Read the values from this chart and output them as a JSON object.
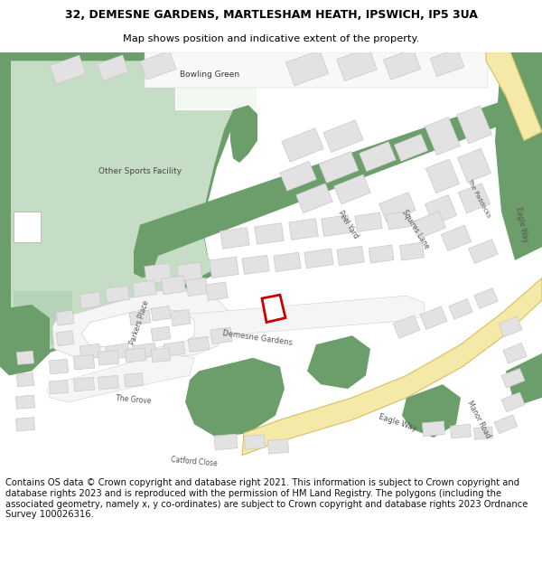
{
  "title_line1": "32, DEMESNE GARDENS, MARTLESHAM HEATH, IPSWICH, IP5 3UA",
  "title_line2": "Map shows position and indicative extent of the property.",
  "footer_text": "Contains OS data © Crown copyright and database right 2021. This information is subject to Crown copyright and database rights 2023 and is reproduced with the permission of HM Land Registry. The polygons (including the associated geometry, namely x, y co-ordinates) are subject to Crown copyright and database rights 2023 Ordnance Survey 100026316.",
  "title_fontsize": 9.0,
  "subtitle_fontsize": 8.2,
  "footer_fontsize": 7.2,
  "bg_color": "#ffffff",
  "map_bg": "#ffffff",
  "green_dark": "#6b9e6b",
  "green_light": "#c5dcc5",
  "road_yellow": "#f5e9a8",
  "road_outline": "#d4c060",
  "building_fill": "#e2e2e2",
  "building_stroke": "#c8c8c8",
  "plot_stroke": "#cc0000",
  "plot_fill": "#ffffff",
  "road_line": "#d0d0d0"
}
